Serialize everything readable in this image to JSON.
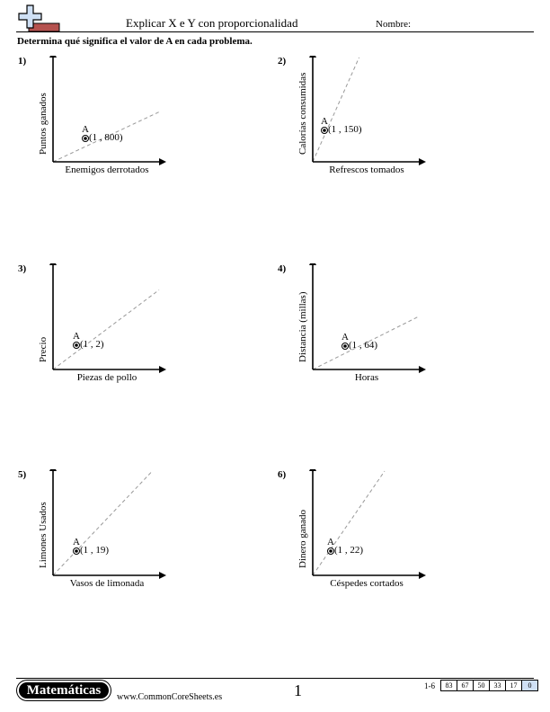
{
  "header": {
    "title": "Explicar X e Y con proporcionalidad",
    "name_label": "Nombre:"
  },
  "instructions": "Determina qué significa el valor de A en cada problema.",
  "problems": [
    {
      "number": "1)",
      "xlabel": "Enemigos derrotados",
      "ylabel": "Puntos ganados",
      "point_name": "A",
      "point_label": "(1 , 800)",
      "x": 1,
      "y": 800
    },
    {
      "number": "2)",
      "xlabel": "Refrescos tomados",
      "ylabel": "Calorías consumidas",
      "point_name": "A",
      "point_label": "(1 , 150)",
      "x": 1,
      "y": 150
    },
    {
      "number": "3)",
      "xlabel": "Piezas de pollo",
      "ylabel": "Precio",
      "point_name": "A",
      "point_label": "(1 , 2)",
      "x": 1,
      "y": 2
    },
    {
      "number": "4)",
      "xlabel": "Horas",
      "ylabel": "Distancia (millas)",
      "point_name": "A",
      "point_label": "(1 , 64)",
      "x": 1,
      "y": 64
    },
    {
      "number": "5)",
      "xlabel": "Vasos de limonada",
      "ylabel": "Limones Usados",
      "point_name": "A",
      "point_label": "(1 , 19)",
      "x": 1,
      "y": 19
    },
    {
      "number": "6)",
      "xlabel": "Céspedes cortados",
      "ylabel": "Dinero ganado",
      "point_name": "A",
      "point_label": "(1 , 22)",
      "x": 1,
      "y": 22
    }
  ],
  "footer": {
    "brand": "Matemáticas",
    "url": "www.CommonCoreSheets.es",
    "page_number": "1",
    "score_range": "1-6",
    "scores": [
      "83",
      "67",
      "50",
      "33",
      "17",
      "0"
    ]
  },
  "colors": {
    "dashed_line": "#999999",
    "logo_red": "#b5524f",
    "logo_blue": "#cfe0f5"
  }
}
